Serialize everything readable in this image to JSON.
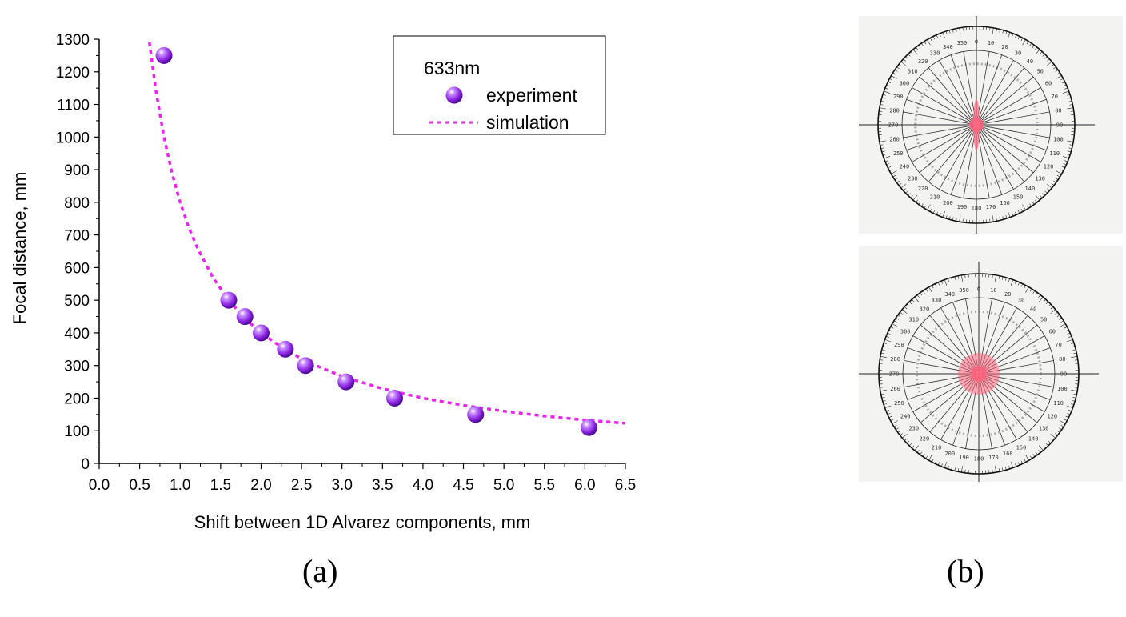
{
  "chart_data": {
    "type": "scatter",
    "xlabel": "Shift between 1D Alvarez components, mm",
    "ylabel": "Focal distance, mm",
    "xlim": [
      0.0,
      6.5
    ],
    "ylim": [
      0,
      1300
    ],
    "x_ticks": [
      "0.0",
      "0.5",
      "1.0",
      "1.5",
      "2.0",
      "2.5",
      "3.0",
      "3.5",
      "4.0",
      "4.5",
      "5.0",
      "5.5",
      "6.0",
      "6.5"
    ],
    "y_ticks": [
      "0",
      "100",
      "200",
      "300",
      "400",
      "500",
      "600",
      "700",
      "800",
      "900",
      "1000",
      "1100",
      "1200",
      "1300"
    ],
    "legend_title": "633nm",
    "legend_position": "top-right",
    "grid": false,
    "series": [
      {
        "name": "experiment",
        "kind": "markers",
        "color": "#8a22e0",
        "x": [
          0.8,
          1.6,
          1.8,
          2.0,
          2.3,
          2.55,
          3.05,
          3.65,
          4.65,
          6.05
        ],
        "y": [
          1250,
          500,
          450,
          400,
          350,
          300,
          250,
          200,
          150,
          110
        ]
      },
      {
        "name": "simulation",
        "kind": "dotted-line",
        "color": "#ee22ee",
        "x": [
          0.62,
          0.7,
          0.8,
          0.9,
          1.0,
          1.1,
          1.2,
          1.4,
          1.6,
          1.8,
          2.0,
          2.3,
          2.6,
          3.0,
          3.5,
          4.0,
          4.5,
          5.0,
          5.5,
          6.0,
          6.5
        ],
        "y": [
          1290,
          1143,
          1000,
          889,
          800,
          727,
          667,
          571,
          500,
          444,
          400,
          348,
          308,
          267,
          229,
          200,
          178,
          160,
          145,
          133,
          123
        ]
      }
    ]
  },
  "captions": {
    "a": "(a)",
    "b": "(b)"
  },
  "protractor": {
    "labels": [
      "0",
      "10",
      "20",
      "30",
      "40",
      "50",
      "60",
      "70",
      "80",
      "90",
      "100",
      "110",
      "120",
      "130",
      "140",
      "150",
      "160",
      "170",
      "180",
      "190",
      "200",
      "210",
      "220",
      "230",
      "240",
      "250",
      "260",
      "270",
      "280",
      "290",
      "300",
      "310",
      "320",
      "330",
      "340",
      "350"
    ],
    "spot_color": "#ff6680"
  }
}
